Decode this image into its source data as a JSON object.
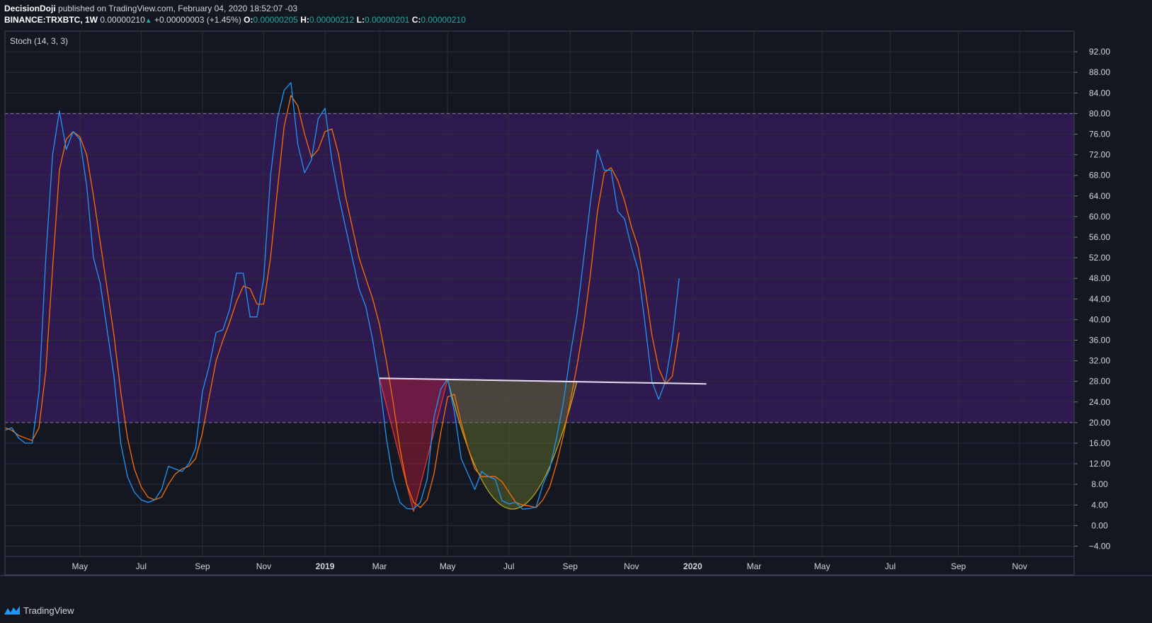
{
  "header": {
    "author": "DecisionDoji",
    "published_text": "published on TradingView.com, February 04, 2020 18:52:07 -03",
    "symbol": "BINANCE:TRXBTC, 1W",
    "price": "0.00000210",
    "change": "+0.00000003 (+1.45%)",
    "o_label": "O:",
    "o_value": "0.00000205",
    "h_label": "H:",
    "h_value": "0.00000212",
    "l_label": "L:",
    "l_value": "0.00000201",
    "c_label": "C:",
    "c_value": "0.00000210"
  },
  "footer": {
    "brand": "TradingView"
  },
  "colors": {
    "background": "#131722",
    "band_fill": "#2e1a4f",
    "grid": "#2a2e39",
    "k_line": "#2196f3",
    "d_line": "#ff6d00",
    "trendline": "#e8dcf5",
    "left_shoulder": "#b71c3a",
    "right_cup": "#6b7a2a"
  },
  "chart_data": {
    "type": "line",
    "indicator_label": "Stoch (14, 3, 3)",
    "ylim": [
      -6,
      96
    ],
    "y_ticks": [
      "92.00",
      "88.00",
      "84.00",
      "80.00",
      "76.00",
      "72.00",
      "68.00",
      "64.00",
      "60.00",
      "56.00",
      "52.00",
      "48.00",
      "44.00",
      "40.00",
      "36.00",
      "32.00",
      "28.00",
      "24.00",
      "20.00",
      "16.00",
      "12.00",
      "8.00",
      "4.00",
      "0.00",
      "−4.00"
    ],
    "band": {
      "upper": 80,
      "lower": 20
    },
    "x_ticks": [
      {
        "label": "May",
        "w": 11,
        "bold": false
      },
      {
        "label": "Jul",
        "w": 20,
        "bold": false
      },
      {
        "label": "Sep",
        "w": 29,
        "bold": false
      },
      {
        "label": "Nov",
        "w": 38,
        "bold": false
      },
      {
        "label": "2019",
        "w": 47,
        "bold": true
      },
      {
        "label": "Mar",
        "w": 55,
        "bold": false
      },
      {
        "label": "May",
        "w": 65,
        "bold": false
      },
      {
        "label": "Jul",
        "w": 74,
        "bold": false
      },
      {
        "label": "Sep",
        "w": 83,
        "bold": false
      },
      {
        "label": "Nov",
        "w": 92,
        "bold": false
      },
      {
        "label": "2020",
        "w": 101,
        "bold": true
      },
      {
        "label": "Mar",
        "w": 110,
        "bold": false
      },
      {
        "label": "May",
        "w": 120,
        "bold": false
      },
      {
        "label": "Jul",
        "w": 130,
        "bold": false
      },
      {
        "label": "Sep",
        "w": 140,
        "bold": false
      },
      {
        "label": "Nov",
        "w": 149,
        "bold": false
      }
    ],
    "series": [
      {
        "key": "k",
        "values": [
          [
            0,
            18.5
          ],
          [
            1,
            19
          ],
          [
            2,
            17
          ],
          [
            3,
            16
          ],
          [
            4,
            16
          ],
          [
            5,
            26
          ],
          [
            6,
            52
          ],
          [
            7,
            72
          ],
          [
            8,
            80.5
          ],
          [
            9,
            73
          ],
          [
            10,
            76.5
          ],
          [
            11,
            75
          ],
          [
            12,
            66
          ],
          [
            13,
            52
          ],
          [
            14,
            47
          ],
          [
            15,
            38
          ],
          [
            16,
            29
          ],
          [
            17,
            16
          ],
          [
            18,
            9.5
          ],
          [
            19,
            6.5
          ],
          [
            20,
            5
          ],
          [
            21,
            4.5
          ],
          [
            22,
            5
          ],
          [
            23,
            7
          ],
          [
            24,
            11.5
          ],
          [
            25,
            11
          ],
          [
            26,
            10.5
          ],
          [
            27,
            12
          ],
          [
            28,
            15
          ],
          [
            29,
            26
          ],
          [
            30,
            31
          ],
          [
            31,
            37.5
          ],
          [
            32,
            38
          ],
          [
            33,
            42
          ],
          [
            34,
            49
          ],
          [
            35,
            49
          ],
          [
            36,
            40.5
          ],
          [
            37,
            40.5
          ],
          [
            38,
            48
          ],
          [
            39,
            68
          ],
          [
            40,
            79
          ],
          [
            41,
            84.5
          ],
          [
            42,
            86
          ],
          [
            43,
            74
          ],
          [
            44,
            68.5
          ],
          [
            45,
            71
          ],
          [
            46,
            79
          ],
          [
            47,
            81
          ],
          [
            48,
            71
          ],
          [
            49,
            64
          ],
          [
            50,
            58
          ],
          [
            51,
            52
          ],
          [
            52,
            46
          ],
          [
            53,
            42.5
          ],
          [
            54,
            36
          ],
          [
            55,
            28
          ],
          [
            56,
            17
          ],
          [
            57,
            9
          ],
          [
            58,
            4.5
          ],
          [
            59,
            3.3
          ],
          [
            60,
            3.2
          ],
          [
            61,
            4.5
          ],
          [
            62,
            9
          ],
          [
            63,
            21
          ],
          [
            64,
            26.5
          ],
          [
            65,
            28.5
          ],
          [
            66,
            22
          ],
          [
            67,
            13
          ],
          [
            68,
            10
          ],
          [
            69,
            7
          ],
          [
            70,
            10.5
          ],
          [
            71,
            9.5
          ],
          [
            72,
            9
          ],
          [
            73,
            4.8
          ],
          [
            74,
            4.2
          ],
          [
            75,
            4.5
          ],
          [
            76,
            3.2
          ],
          [
            77,
            3.3
          ],
          [
            78,
            3.6
          ],
          [
            79,
            8
          ],
          [
            80,
            11
          ],
          [
            81,
            17
          ],
          [
            82,
            24
          ],
          [
            83,
            33
          ],
          [
            84,
            41
          ],
          [
            85,
            52
          ],
          [
            86,
            63
          ],
          [
            87,
            73
          ],
          [
            88,
            69
          ],
          [
            89,
            69
          ],
          [
            90,
            61
          ],
          [
            91,
            59.5
          ],
          [
            92,
            54
          ],
          [
            93,
            49.5
          ],
          [
            94,
            39
          ],
          [
            95,
            28
          ],
          [
            96,
            24.5
          ],
          [
            97,
            28
          ],
          [
            98,
            36
          ],
          [
            99,
            48
          ]
        ]
      },
      {
        "key": "d",
        "values": [
          [
            0,
            19
          ],
          [
            1,
            18.5
          ],
          [
            2,
            17.5
          ],
          [
            3,
            17
          ],
          [
            4,
            16.5
          ],
          [
            5,
            19
          ],
          [
            6,
            30
          ],
          [
            7,
            50
          ],
          [
            8,
            69
          ],
          [
            9,
            75
          ],
          [
            10,
            76.5
          ],
          [
            11,
            75.5
          ],
          [
            12,
            72
          ],
          [
            13,
            64
          ],
          [
            14,
            55
          ],
          [
            15,
            46
          ],
          [
            16,
            37
          ],
          [
            17,
            26
          ],
          [
            18,
            17
          ],
          [
            19,
            11
          ],
          [
            20,
            7.5
          ],
          [
            21,
            5.5
          ],
          [
            22,
            5
          ],
          [
            23,
            5.5
          ],
          [
            24,
            8
          ],
          [
            25,
            10
          ],
          [
            26,
            11
          ],
          [
            27,
            11.5
          ],
          [
            28,
            13
          ],
          [
            29,
            18
          ],
          [
            30,
            25
          ],
          [
            31,
            32
          ],
          [
            32,
            36
          ],
          [
            33,
            39.5
          ],
          [
            34,
            43.5
          ],
          [
            35,
            46.5
          ],
          [
            36,
            46
          ],
          [
            37,
            43
          ],
          [
            38,
            43
          ],
          [
            39,
            52
          ],
          [
            40,
            65
          ],
          [
            41,
            77.5
          ],
          [
            42,
            83.5
          ],
          [
            43,
            81.5
          ],
          [
            44,
            76
          ],
          [
            45,
            71.5
          ],
          [
            46,
            73
          ],
          [
            47,
            76.5
          ],
          [
            48,
            77
          ],
          [
            49,
            72
          ],
          [
            50,
            64
          ],
          [
            51,
            58
          ],
          [
            52,
            52
          ],
          [
            53,
            48
          ],
          [
            54,
            44
          ],
          [
            55,
            39
          ],
          [
            56,
            32
          ],
          [
            57,
            24
          ],
          [
            58,
            15
          ],
          [
            59,
            8
          ],
          [
            60,
            4.5
          ],
          [
            61,
            3.5
          ],
          [
            62,
            5
          ],
          [
            63,
            10
          ],
          [
            64,
            18
          ],
          [
            65,
            25
          ],
          [
            66,
            25.5
          ],
          [
            67,
            20
          ],
          [
            68,
            15
          ],
          [
            69,
            11
          ],
          [
            70,
            9.5
          ],
          [
            71,
            9.5
          ],
          [
            72,
            9.5
          ],
          [
            73,
            8.5
          ],
          [
            74,
            6.5
          ],
          [
            75,
            4.5
          ],
          [
            76,
            4
          ],
          [
            77,
            3.8
          ],
          [
            78,
            3.5
          ],
          [
            79,
            5
          ],
          [
            80,
            7.5
          ],
          [
            81,
            12
          ],
          [
            82,
            17.5
          ],
          [
            83,
            24
          ],
          [
            84,
            31
          ],
          [
            85,
            39
          ],
          [
            86,
            49
          ],
          [
            87,
            61
          ],
          [
            88,
            68.5
          ],
          [
            89,
            69.5
          ],
          [
            90,
            67
          ],
          [
            91,
            63
          ],
          [
            92,
            58
          ],
          [
            93,
            54
          ],
          [
            94,
            46
          ],
          [
            95,
            37
          ],
          [
            96,
            30.5
          ],
          [
            97,
            27.5
          ],
          [
            98,
            29
          ],
          [
            99,
            37.5
          ]
        ]
      }
    ],
    "drawings": {
      "trendline": {
        "from": [
          55,
          28.6
        ],
        "to": [
          103,
          27.5
        ]
      },
      "left_shoulder": [
        [
          55,
          28.6
        ],
        [
          60,
          2.7
        ],
        [
          65,
          28.4
        ]
      ],
      "right_cup": {
        "start": [
          65,
          28.4
        ],
        "bottom": [
          74.5,
          3.2
        ],
        "end": [
          84,
          28.0
        ]
      }
    }
  }
}
